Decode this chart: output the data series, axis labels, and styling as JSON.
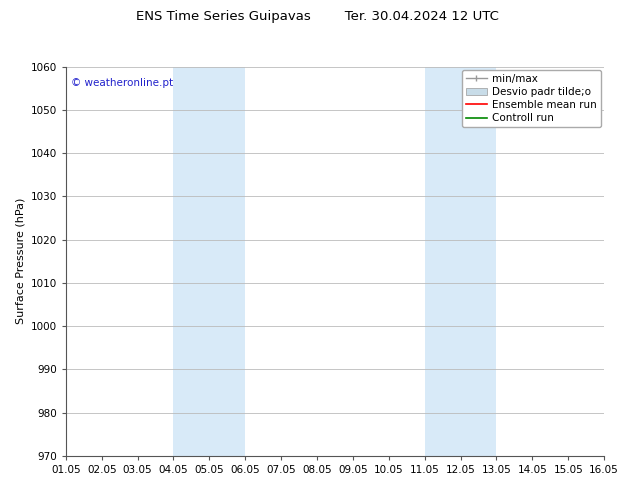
{
  "title_left": "ENS Time Series Guipavas",
  "title_right": "Ter. 30.04.2024 12 UTC",
  "ylabel": "Surface Pressure (hPa)",
  "xlabel": "",
  "watermark": "© weatheronline.pt",
  "watermark_color": "#2222cc",
  "ylim": [
    970,
    1060
  ],
  "yticks": [
    970,
    980,
    990,
    1000,
    1010,
    1020,
    1030,
    1040,
    1050,
    1060
  ],
  "xtick_labels": [
    "01.05",
    "02.05",
    "03.05",
    "04.05",
    "05.05",
    "06.05",
    "07.05",
    "08.05",
    "09.05",
    "10.05",
    "11.05",
    "12.05",
    "13.05",
    "14.05",
    "15.05",
    "16.05"
  ],
  "xtick_positions": [
    0,
    1,
    2,
    3,
    4,
    5,
    6,
    7,
    8,
    9,
    10,
    11,
    12,
    13,
    14,
    15
  ],
  "shaded_bands": [
    {
      "x_start": 3,
      "x_end": 5,
      "color": "#d8eaf8"
    },
    {
      "x_start": 10,
      "x_end": 12,
      "color": "#d8eaf8"
    }
  ],
  "legend_labels": [
    "min/max",
    "Desvio padr tilde;o",
    "Ensemble mean run",
    "Controll run"
  ],
  "minmax_color": "#999999",
  "desvio_color": "#c8dce8",
  "ensemble_color": "#ff0000",
  "control_color": "#008800",
  "background_color": "#ffffff",
  "plot_bg_color": "#ffffff",
  "grid_color": "#bbbbbb",
  "title_fontsize": 9.5,
  "axis_label_fontsize": 8,
  "tick_fontsize": 7.5,
  "watermark_fontsize": 7.5,
  "legend_fontsize": 7.5,
  "figure_width": 6.34,
  "figure_height": 4.9,
  "dpi": 100
}
